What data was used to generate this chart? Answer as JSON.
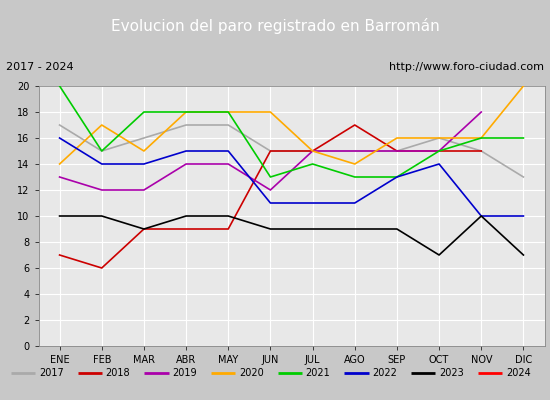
{
  "title": "Evolucion del paro registrado en Barromán",
  "subtitle_left": "2017 - 2024",
  "subtitle_right": "http://www.foro-ciudad.com",
  "months": [
    "ENE",
    "FEB",
    "MAR",
    "ABR",
    "MAY",
    "JUN",
    "JUL",
    "AGO",
    "SEP",
    "OCT",
    "NOV",
    "DIC"
  ],
  "series": {
    "2017": {
      "color": "#aaaaaa",
      "data": [
        17,
        15,
        16,
        17,
        17,
        15,
        15,
        15,
        15,
        16,
        15,
        13
      ]
    },
    "2018": {
      "color": "#cc0000",
      "data": [
        7,
        6,
        9,
        9,
        9,
        15,
        15,
        17,
        15,
        15,
        15,
        null
      ]
    },
    "2019": {
      "color": "#aa00aa",
      "data": [
        13,
        12,
        12,
        14,
        14,
        12,
        15,
        15,
        15,
        15,
        18,
        null
      ]
    },
    "2020": {
      "color": "#ffaa00",
      "data": [
        14,
        17,
        15,
        18,
        18,
        18,
        15,
        14,
        16,
        16,
        16,
        20
      ]
    },
    "2021": {
      "color": "#00cc00",
      "data": [
        20,
        15,
        18,
        18,
        18,
        13,
        14,
        13,
        13,
        15,
        16,
        16
      ]
    },
    "2022": {
      "color": "#0000cc",
      "data": [
        16,
        14,
        14,
        15,
        15,
        11,
        11,
        11,
        13,
        14,
        10,
        10
      ]
    },
    "2023": {
      "color": "#000000",
      "data": [
        10,
        10,
        9,
        10,
        10,
        9,
        9,
        9,
        9,
        7,
        10,
        7
      ]
    },
    "2024": {
      "color": "#ff0000",
      "data": [
        null,
        null,
        null,
        null,
        null,
        null,
        null,
        null,
        null,
        null,
        null,
        null
      ]
    }
  },
  "ylim": [
    0,
    20
  ],
  "yticks": [
    0,
    2,
    4,
    6,
    8,
    10,
    12,
    14,
    16,
    18,
    20
  ],
  "title_bg": "#4f81bd",
  "title_color": "#ffffff",
  "title_fontsize": 11,
  "subtitle_fontsize": 8,
  "tick_fontsize": 7,
  "plot_bg": "#e8e8e8",
  "grid_color": "#ffffff",
  "legend_bg": "#f0f0f0",
  "fig_bg": "#c8c8c8",
  "border_color": "#888888"
}
